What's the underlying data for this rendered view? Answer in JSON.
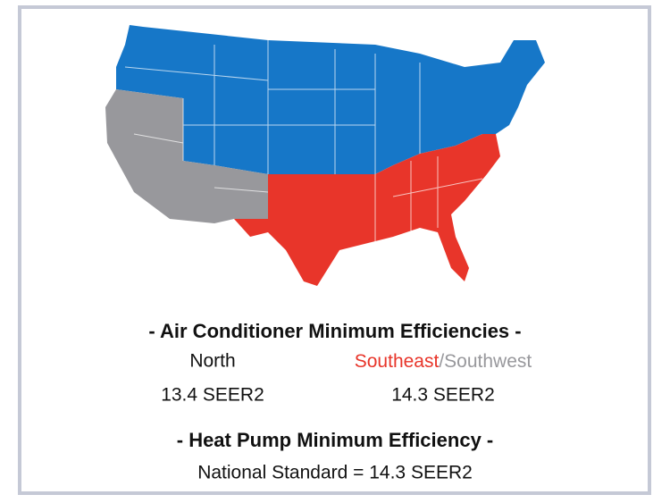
{
  "regions": [
    {
      "name": "North",
      "color": "#1677c8",
      "value": "13.4 SEER2"
    },
    {
      "name": "Southeast",
      "color": "#e8352a",
      "value": "14.3 SEER2"
    },
    {
      "name": "Southwest",
      "color": "#98989c"
    }
  ],
  "separator": "/",
  "ac_title": "- Air Conditioner Minimum Efficiencies -",
  "hp_title": "- Heat Pump Minimum Efficiency -",
  "hp_standard": "National Standard = 14.3 SEER2"
}
